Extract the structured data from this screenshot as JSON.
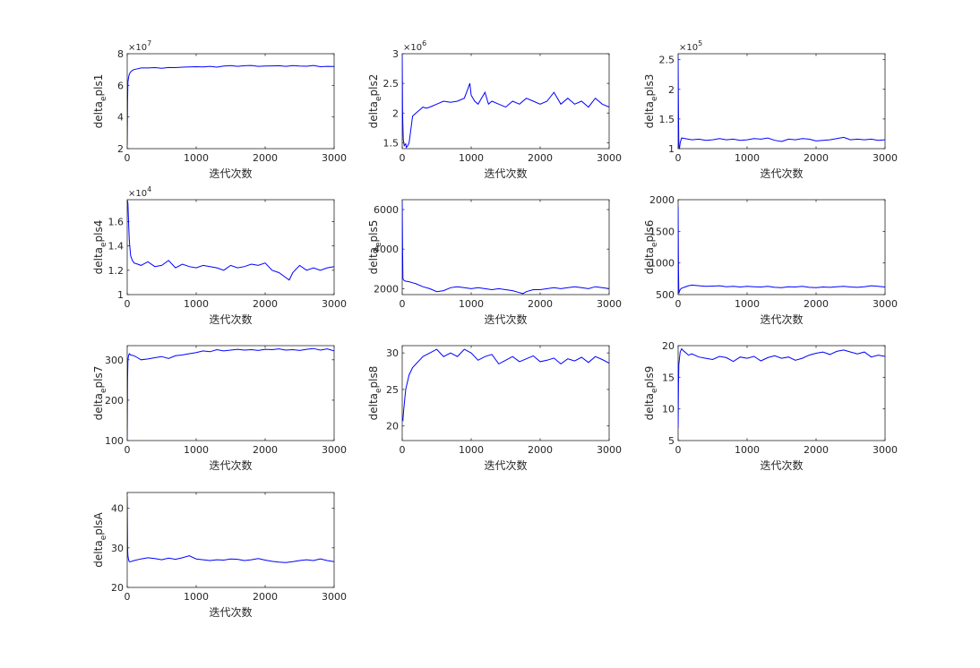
{
  "figure": {
    "background": "#ffffff",
    "axes_color": "#262626",
    "line_color": "#0000ff"
  },
  "chart_data": [
    {
      "type": "line",
      "ylabel_main": "delta",
      "ylabel_sub": "e",
      "ylabel_rest": "pls1",
      "xlabel": "迭代次数",
      "xlim": [
        0,
        3000
      ],
      "ylim": [
        2,
        8
      ],
      "xticks": [
        0,
        1000,
        2000,
        3000
      ],
      "yticks": [
        2,
        4,
        6,
        8
      ],
      "ytick_labels": [
        "2",
        "4",
        "6",
        "8"
      ],
      "exponent_base": "×10",
      "exponent_power": "7",
      "series": [
        {
          "x": [
            0,
            5,
            10,
            20,
            30,
            50,
            75,
            100,
            150,
            200,
            300,
            400,
            500,
            600,
            700,
            800,
            900,
            1000,
            1100,
            1200,
            1300,
            1400,
            1500,
            1600,
            1700,
            1800,
            1900,
            2000,
            2100,
            2200,
            2300,
            2400,
            2500,
            2600,
            2700,
            2800,
            2900,
            3000
          ],
          "y": [
            2.2,
            5.0,
            6.2,
            6.5,
            6.7,
            6.85,
            6.95,
            7.0,
            7.05,
            7.1,
            7.1,
            7.12,
            7.08,
            7.13,
            7.12,
            7.15,
            7.17,
            7.18,
            7.16,
            7.2,
            7.15,
            7.22,
            7.25,
            7.2,
            7.24,
            7.26,
            7.2,
            7.22,
            7.23,
            7.24,
            7.2,
            7.25,
            7.22,
            7.21,
            7.26,
            7.18,
            7.2,
            7.19
          ]
        }
      ]
    },
    {
      "type": "line",
      "ylabel_main": "delta",
      "ylabel_sub": "e",
      "ylabel_rest": "pls2",
      "xlabel": "迭代次数",
      "xlim": [
        0,
        3000
      ],
      "ylim": [
        1.4,
        3
      ],
      "xticks": [
        0,
        1000,
        2000,
        3000
      ],
      "yticks": [
        1.5,
        2,
        2.5,
        3
      ],
      "ytick_labels": [
        "1.5",
        "2",
        "2.5",
        "3"
      ],
      "exponent_base": "×10",
      "exponent_power": "6",
      "series": [
        {
          "x": [
            0,
            5,
            15,
            30,
            50,
            60,
            80,
            100,
            150,
            200,
            250,
            300,
            350,
            400,
            500,
            600,
            700,
            800,
            900,
            950,
            980,
            1000,
            1050,
            1100,
            1150,
            1200,
            1250,
            1300,
            1400,
            1500,
            1600,
            1700,
            1800,
            1900,
            2000,
            2100,
            2200,
            2300,
            2400,
            2500,
            2600,
            2700,
            2800,
            2900,
            3000
          ],
          "y": [
            3.0,
            2.0,
            1.55,
            1.45,
            1.48,
            1.42,
            1.45,
            1.5,
            1.95,
            2.0,
            2.05,
            2.1,
            2.08,
            2.1,
            2.15,
            2.2,
            2.18,
            2.2,
            2.25,
            2.4,
            2.5,
            2.3,
            2.2,
            2.15,
            2.25,
            2.35,
            2.15,
            2.2,
            2.15,
            2.1,
            2.2,
            2.15,
            2.25,
            2.2,
            2.15,
            2.2,
            2.35,
            2.15,
            2.25,
            2.15,
            2.2,
            2.1,
            2.25,
            2.15,
            2.1
          ]
        }
      ]
    },
    {
      "type": "line",
      "ylabel_main": "delta",
      "ylabel_sub": "e",
      "ylabel_rest": "pls3",
      "xlabel": "迭代次数",
      "xlim": [
        0,
        3000
      ],
      "ylim": [
        1,
        2.6
      ],
      "xticks": [
        0,
        1000,
        2000,
        3000
      ],
      "yticks": [
        1,
        1.5,
        2,
        2.5
      ],
      "ytick_labels": [
        "1",
        "1.5",
        "2",
        "2.5"
      ],
      "exponent_base": "×10",
      "exponent_power": "5",
      "series": [
        {
          "x": [
            0,
            5,
            10,
            20,
            30,
            50,
            100,
            200,
            300,
            400,
            500,
            600,
            700,
            800,
            900,
            1000,
            1100,
            1200,
            1300,
            1400,
            1500,
            1600,
            1700,
            1800,
            1900,
            2000,
            2100,
            2200,
            2300,
            2400,
            2500,
            2600,
            2700,
            2800,
            2900,
            3000
          ],
          "y": [
            2.55,
            1.6,
            1.05,
            1.0,
            1.1,
            1.18,
            1.17,
            1.15,
            1.16,
            1.14,
            1.15,
            1.17,
            1.15,
            1.16,
            1.14,
            1.15,
            1.17,
            1.16,
            1.18,
            1.14,
            1.12,
            1.16,
            1.15,
            1.17,
            1.16,
            1.13,
            1.14,
            1.15,
            1.17,
            1.19,
            1.15,
            1.16,
            1.15,
            1.16,
            1.14,
            1.15
          ]
        }
      ]
    },
    {
      "type": "line",
      "ylabel_main": "delta",
      "ylabel_sub": "e",
      "ylabel_rest": "pls4",
      "xlabel": "迭代次数",
      "xlim": [
        0,
        3000
      ],
      "ylim": [
        1,
        1.78
      ],
      "xticks": [
        0,
        1000,
        2000,
        3000
      ],
      "yticks": [
        1,
        1.2,
        1.4,
        1.6
      ],
      "ytick_labels": [
        "1",
        "1.2",
        "1.4",
        "1.6"
      ],
      "exponent_base": "×10",
      "exponent_power": "4",
      "series": [
        {
          "x": [
            0,
            10,
            20,
            30,
            40,
            50,
            75,
            100,
            150,
            200,
            300,
            400,
            500,
            600,
            700,
            800,
            900,
            1000,
            1100,
            1200,
            1300,
            1400,
            1500,
            1600,
            1700,
            1800,
            1900,
            2000,
            2100,
            2200,
            2300,
            2350,
            2400,
            2500,
            2600,
            2700,
            2800,
            2900,
            3000
          ],
          "y": [
            1.78,
            1.75,
            1.6,
            1.45,
            1.38,
            1.32,
            1.28,
            1.26,
            1.25,
            1.24,
            1.27,
            1.23,
            1.24,
            1.28,
            1.22,
            1.25,
            1.23,
            1.22,
            1.24,
            1.23,
            1.22,
            1.2,
            1.24,
            1.22,
            1.23,
            1.25,
            1.24,
            1.26,
            1.2,
            1.18,
            1.14,
            1.12,
            1.18,
            1.24,
            1.2,
            1.22,
            1.2,
            1.22,
            1.23
          ]
        }
      ]
    },
    {
      "type": "line",
      "ylabel_main": "delta",
      "ylabel_sub": "e",
      "ylabel_rest": "pls5",
      "xlabel": "迭代次数",
      "xlim": [
        0,
        3000
      ],
      "ylim": [
        1700,
        6500
      ],
      "xticks": [
        0,
        1000,
        2000,
        3000
      ],
      "yticks": [
        2000,
        4000,
        6000
      ],
      "ytick_labels": [
        "2000",
        "4000",
        "6000"
      ],
      "exponent_base": "",
      "exponent_power": "",
      "series": [
        {
          "x": [
            0,
            5,
            10,
            20,
            30,
            50,
            100,
            150,
            200,
            300,
            400,
            500,
            600,
            700,
            800,
            900,
            1000,
            1100,
            1200,
            1300,
            1400,
            1500,
            1600,
            1700,
            1750,
            1800,
            1900,
            2000,
            2100,
            2200,
            2300,
            2400,
            2500,
            2600,
            2700,
            2800,
            2900,
            3000
          ],
          "y": [
            6400,
            4000,
            2500,
            2450,
            2400,
            2380,
            2350,
            2300,
            2250,
            2100,
            2000,
            1850,
            1900,
            2050,
            2100,
            2050,
            2000,
            2050,
            2000,
            1950,
            2000,
            1950,
            1900,
            1800,
            1750,
            1850,
            1950,
            1950,
            2000,
            2050,
            2000,
            2050,
            2100,
            2050,
            2000,
            2100,
            2050,
            2000
          ]
        }
      ]
    },
    {
      "type": "line",
      "ylabel_main": "delta",
      "ylabel_sub": "e",
      "ylabel_rest": "pls6",
      "xlabel": "迭代次数",
      "xlim": [
        0,
        3000
      ],
      "ylim": [
        500,
        2000
      ],
      "xticks": [
        0,
        1000,
        2000,
        3000
      ],
      "yticks": [
        500,
        1000,
        1500,
        2000
      ],
      "ytick_labels": [
        "500",
        "1000",
        "1500",
        "2000"
      ],
      "exponent_base": "",
      "exponent_power": "",
      "series": [
        {
          "x": [
            0,
            5,
            10,
            20,
            30,
            50,
            100,
            150,
            200,
            300,
            400,
            500,
            600,
            700,
            800,
            900,
            1000,
            1100,
            1200,
            1300,
            1400,
            1500,
            1600,
            1700,
            1800,
            1900,
            2000,
            2100,
            2200,
            2300,
            2400,
            2500,
            2600,
            2700,
            2800,
            2900,
            3000
          ],
          "y": [
            1900,
            900,
            520,
            550,
            580,
            600,
            620,
            640,
            650,
            640,
            630,
            635,
            640,
            625,
            630,
            620,
            630,
            625,
            620,
            630,
            615,
            610,
            625,
            620,
            630,
            615,
            610,
            620,
            615,
            625,
            630,
            620,
            615,
            625,
            640,
            630,
            620
          ]
        }
      ]
    },
    {
      "type": "line",
      "ylabel_main": "delta",
      "ylabel_sub": "e",
      "ylabel_rest": "pls7",
      "xlabel": "迭代次数",
      "xlim": [
        0,
        3000
      ],
      "ylim": [
        100,
        335
      ],
      "xticks": [
        0,
        1000,
        2000,
        3000
      ],
      "yticks": [
        100,
        200,
        300
      ],
      "ytick_labels": [
        "100",
        "200",
        "300"
      ],
      "exponent_base": "",
      "exponent_power": "",
      "series": [
        {
          "x": [
            0,
            5,
            10,
            20,
            30,
            50,
            100,
            150,
            200,
            300,
            400,
            500,
            600,
            700,
            800,
            900,
            1000,
            1100,
            1200,
            1300,
            1400,
            1500,
            1600,
            1700,
            1800,
            1900,
            2000,
            2100,
            2200,
            2300,
            2400,
            2500,
            2600,
            2700,
            2800,
            2900,
            3000
          ],
          "y": [
            105,
            250,
            300,
            310,
            315,
            312,
            310,
            305,
            300,
            302,
            305,
            308,
            303,
            310,
            312,
            315,
            318,
            322,
            320,
            325,
            322,
            324,
            326,
            324,
            325,
            323,
            326,
            325,
            327,
            324,
            325,
            323,
            326,
            328,
            324,
            327,
            322
          ]
        }
      ]
    },
    {
      "type": "line",
      "ylabel_main": "delta",
      "ylabel_sub": "e",
      "ylabel_rest": "pls8",
      "xlabel": "迭代次数",
      "xlim": [
        0,
        3000
      ],
      "ylim": [
        18,
        31
      ],
      "xticks": [
        0,
        1000,
        2000,
        3000
      ],
      "yticks": [
        20,
        25,
        30
      ],
      "ytick_labels": [
        "20",
        "25",
        "30"
      ],
      "exponent_base": "",
      "exponent_power": "",
      "series": [
        {
          "x": [
            0,
            10,
            20,
            30,
            50,
            75,
            100,
            150,
            200,
            250,
            300,
            400,
            500,
            600,
            700,
            800,
            900,
            1000,
            1100,
            1200,
            1300,
            1400,
            1500,
            1600,
            1700,
            1800,
            1900,
            2000,
            2100,
            2200,
            2300,
            2400,
            2500,
            2600,
            2700,
            2800,
            2900,
            3000
          ],
          "y": [
            21,
            20.8,
            22,
            23,
            25,
            26,
            27,
            28,
            28.5,
            29,
            29.5,
            30,
            30.5,
            29.5,
            30,
            29.5,
            30.5,
            30,
            29,
            29.5,
            29.8,
            28.5,
            29,
            29.5,
            28.8,
            29.2,
            29.6,
            28.8,
            29,
            29.3,
            28.5,
            29.2,
            28.9,
            29.4,
            28.7,
            29.5,
            29.1,
            28.6
          ]
        }
      ]
    },
    {
      "type": "line",
      "ylabel_main": "delta",
      "ylabel_sub": "e",
      "ylabel_rest": "pls9",
      "xlabel": "迭代次数",
      "xlim": [
        0,
        3000
      ],
      "ylim": [
        5,
        20
      ],
      "xticks": [
        0,
        1000,
        2000,
        3000
      ],
      "yticks": [
        5,
        10,
        15,
        20
      ],
      "ytick_labels": [
        "5",
        "10",
        "15",
        "20"
      ],
      "exponent_base": "",
      "exponent_power": "",
      "series": [
        {
          "x": [
            0,
            5,
            10,
            20,
            30,
            50,
            75,
            100,
            150,
            200,
            300,
            400,
            500,
            600,
            700,
            800,
            900,
            1000,
            1100,
            1200,
            1300,
            1400,
            1500,
            1600,
            1700,
            1800,
            1900,
            2000,
            2100,
            2200,
            2300,
            2400,
            2500,
            2600,
            2700,
            2800,
            2900,
            3000
          ],
          "y": [
            7,
            14,
            17,
            18,
            19,
            19.5,
            19.2,
            19,
            18.5,
            18.7,
            18.2,
            18.0,
            17.8,
            18.3,
            18.1,
            17.5,
            18.2,
            18.0,
            18.3,
            17.6,
            18.1,
            18.4,
            18.0,
            18.2,
            17.7,
            18.0,
            18.5,
            18.8,
            19.0,
            18.6,
            19.1,
            19.3,
            19.0,
            18.7,
            19.0,
            18.2,
            18.5,
            18.3
          ]
        }
      ]
    },
    {
      "type": "line",
      "ylabel_main": "delta",
      "ylabel_sub": "e",
      "ylabel_rest": "plsA",
      "xlabel": "迭代次数",
      "xlim": [
        0,
        3000
      ],
      "ylim": [
        20,
        44
      ],
      "xticks": [
        0,
        1000,
        2000,
        3000
      ],
      "yticks": [
        20,
        30,
        40
      ],
      "ytick_labels": [
        "20",
        "30",
        "40"
      ],
      "exponent_base": "",
      "exponent_power": "",
      "series": [
        {
          "x": [
            0,
            5,
            10,
            20,
            30,
            50,
            100,
            200,
            300,
            400,
            500,
            600,
            700,
            800,
            900,
            1000,
            1100,
            1200,
            1300,
            1400,
            1500,
            1600,
            1700,
            1800,
            1900,
            2000,
            2100,
            2200,
            2300,
            2400,
            2500,
            2600,
            2700,
            2800,
            2900,
            3000
          ],
          "y": [
            43,
            30,
            28,
            27,
            26.5,
            26.5,
            26.8,
            27.2,
            27.5,
            27.3,
            27.0,
            27.4,
            27.1,
            27.5,
            28.0,
            27.2,
            27.0,
            26.8,
            27.0,
            26.9,
            27.2,
            27.1,
            26.8,
            27.0,
            27.3,
            26.9,
            26.6,
            26.4,
            26.3,
            26.5,
            26.8,
            27.0,
            26.8,
            27.2,
            26.8,
            26.5
          ]
        }
      ]
    }
  ]
}
